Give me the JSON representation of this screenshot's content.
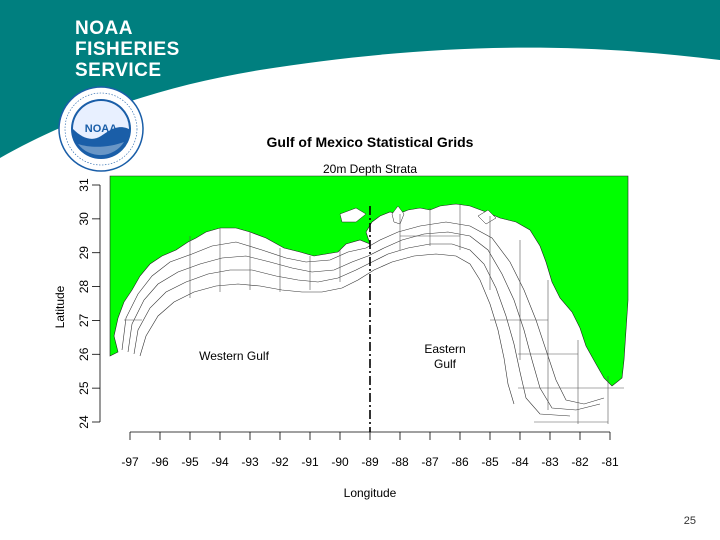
{
  "branding": {
    "line1": "NOAA",
    "line2": "FISHERIES",
    "line3": "SERVICE",
    "logo_text": "NOAA",
    "colors": {
      "teal": "#007f7f",
      "logo_blue": "#1a5ea8"
    }
  },
  "figure": {
    "title": "Gulf of Mexico Statistical Grids",
    "subtitle": "20m Depth Strata",
    "xlabel": "Longitude",
    "ylabel": "Latitude",
    "region_west": "Western Gulf",
    "region_east_1": "Eastern",
    "region_east_2": "Gulf",
    "land_color": "#00ff00",
    "divider_longitude": -89
  },
  "chart_data": {
    "type": "map",
    "title": "Gulf of Mexico Statistical Grids",
    "subtitle": "20m Depth Strata",
    "xlabel": "Longitude",
    "ylabel": "Latitude",
    "xlim": [
      -98,
      -80.5
    ],
    "ylim": [
      24,
      31.3
    ],
    "x_ticks": [
      -97,
      -96,
      -95,
      -94,
      -93,
      -92,
      -91,
      -90,
      -89,
      -88,
      -87,
      -86,
      -85,
      -84,
      -83,
      -82,
      -81
    ],
    "y_ticks": [
      24,
      25,
      26,
      27,
      28,
      29,
      30,
      31
    ],
    "annotations": [
      "Western Gulf",
      "Eastern Gulf"
    ],
    "grid": false
  },
  "page": {
    "number": "25"
  }
}
